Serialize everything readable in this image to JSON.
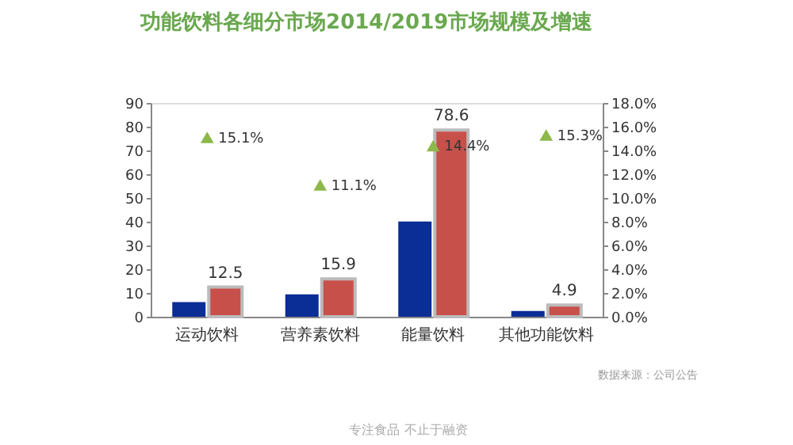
{
  "chart_data": {
    "type": "bar",
    "title": "功能饮料各细分市场2014/2019市场规模及增速",
    "categories": [
      "运动饮料",
      "营养素饮料",
      "能量饮料",
      "其他功能饮料"
    ],
    "series": [
      {
        "type": "bar",
        "color": "#0a2d96",
        "values": [
          6.2,
          9.4,
          40.1,
          2.4
        ]
      },
      {
        "type": "bar",
        "color": "#c8504b",
        "values": [
          12.5,
          15.9,
          78.6,
          4.9
        ],
        "value_labels": [
          "12.5",
          "15.9",
          "78.6",
          "4.9"
        ]
      },
      {
        "type": "scatter",
        "axis": "y2",
        "color": "#8db84a",
        "marker": "triangle",
        "values": [
          15.1,
          11.1,
          14.4,
          15.3
        ],
        "value_labels": [
          "15.1%",
          "11.1%",
          "14.4%",
          "15.3%"
        ]
      }
    ],
    "ylim": [
      0,
      90
    ],
    "yticks": [
      0,
      10,
      20,
      30,
      40,
      50,
      60,
      70,
      80,
      90
    ],
    "y2lim": [
      0,
      18
    ],
    "y2ticks": [
      {
        "value": 0,
        "label": "0.0%"
      },
      {
        "value": 2,
        "label": "2.0%"
      },
      {
        "value": 4,
        "label": "4.0%"
      },
      {
        "value": 6,
        "label": "6.0%"
      },
      {
        "value": 8,
        "label": "8.0%"
      },
      {
        "value": 10,
        "label": "10.0%"
      },
      {
        "value": 12,
        "label": "12.0%"
      },
      {
        "value": 14,
        "label": "14.0%"
      },
      {
        "value": 16,
        "label": "16.0%"
      },
      {
        "value": 18,
        "label": "18.0%"
      }
    ],
    "grid": false,
    "annotations": [
      "数据来源：公司公告",
      "专注食品  不止于融资"
    ]
  }
}
